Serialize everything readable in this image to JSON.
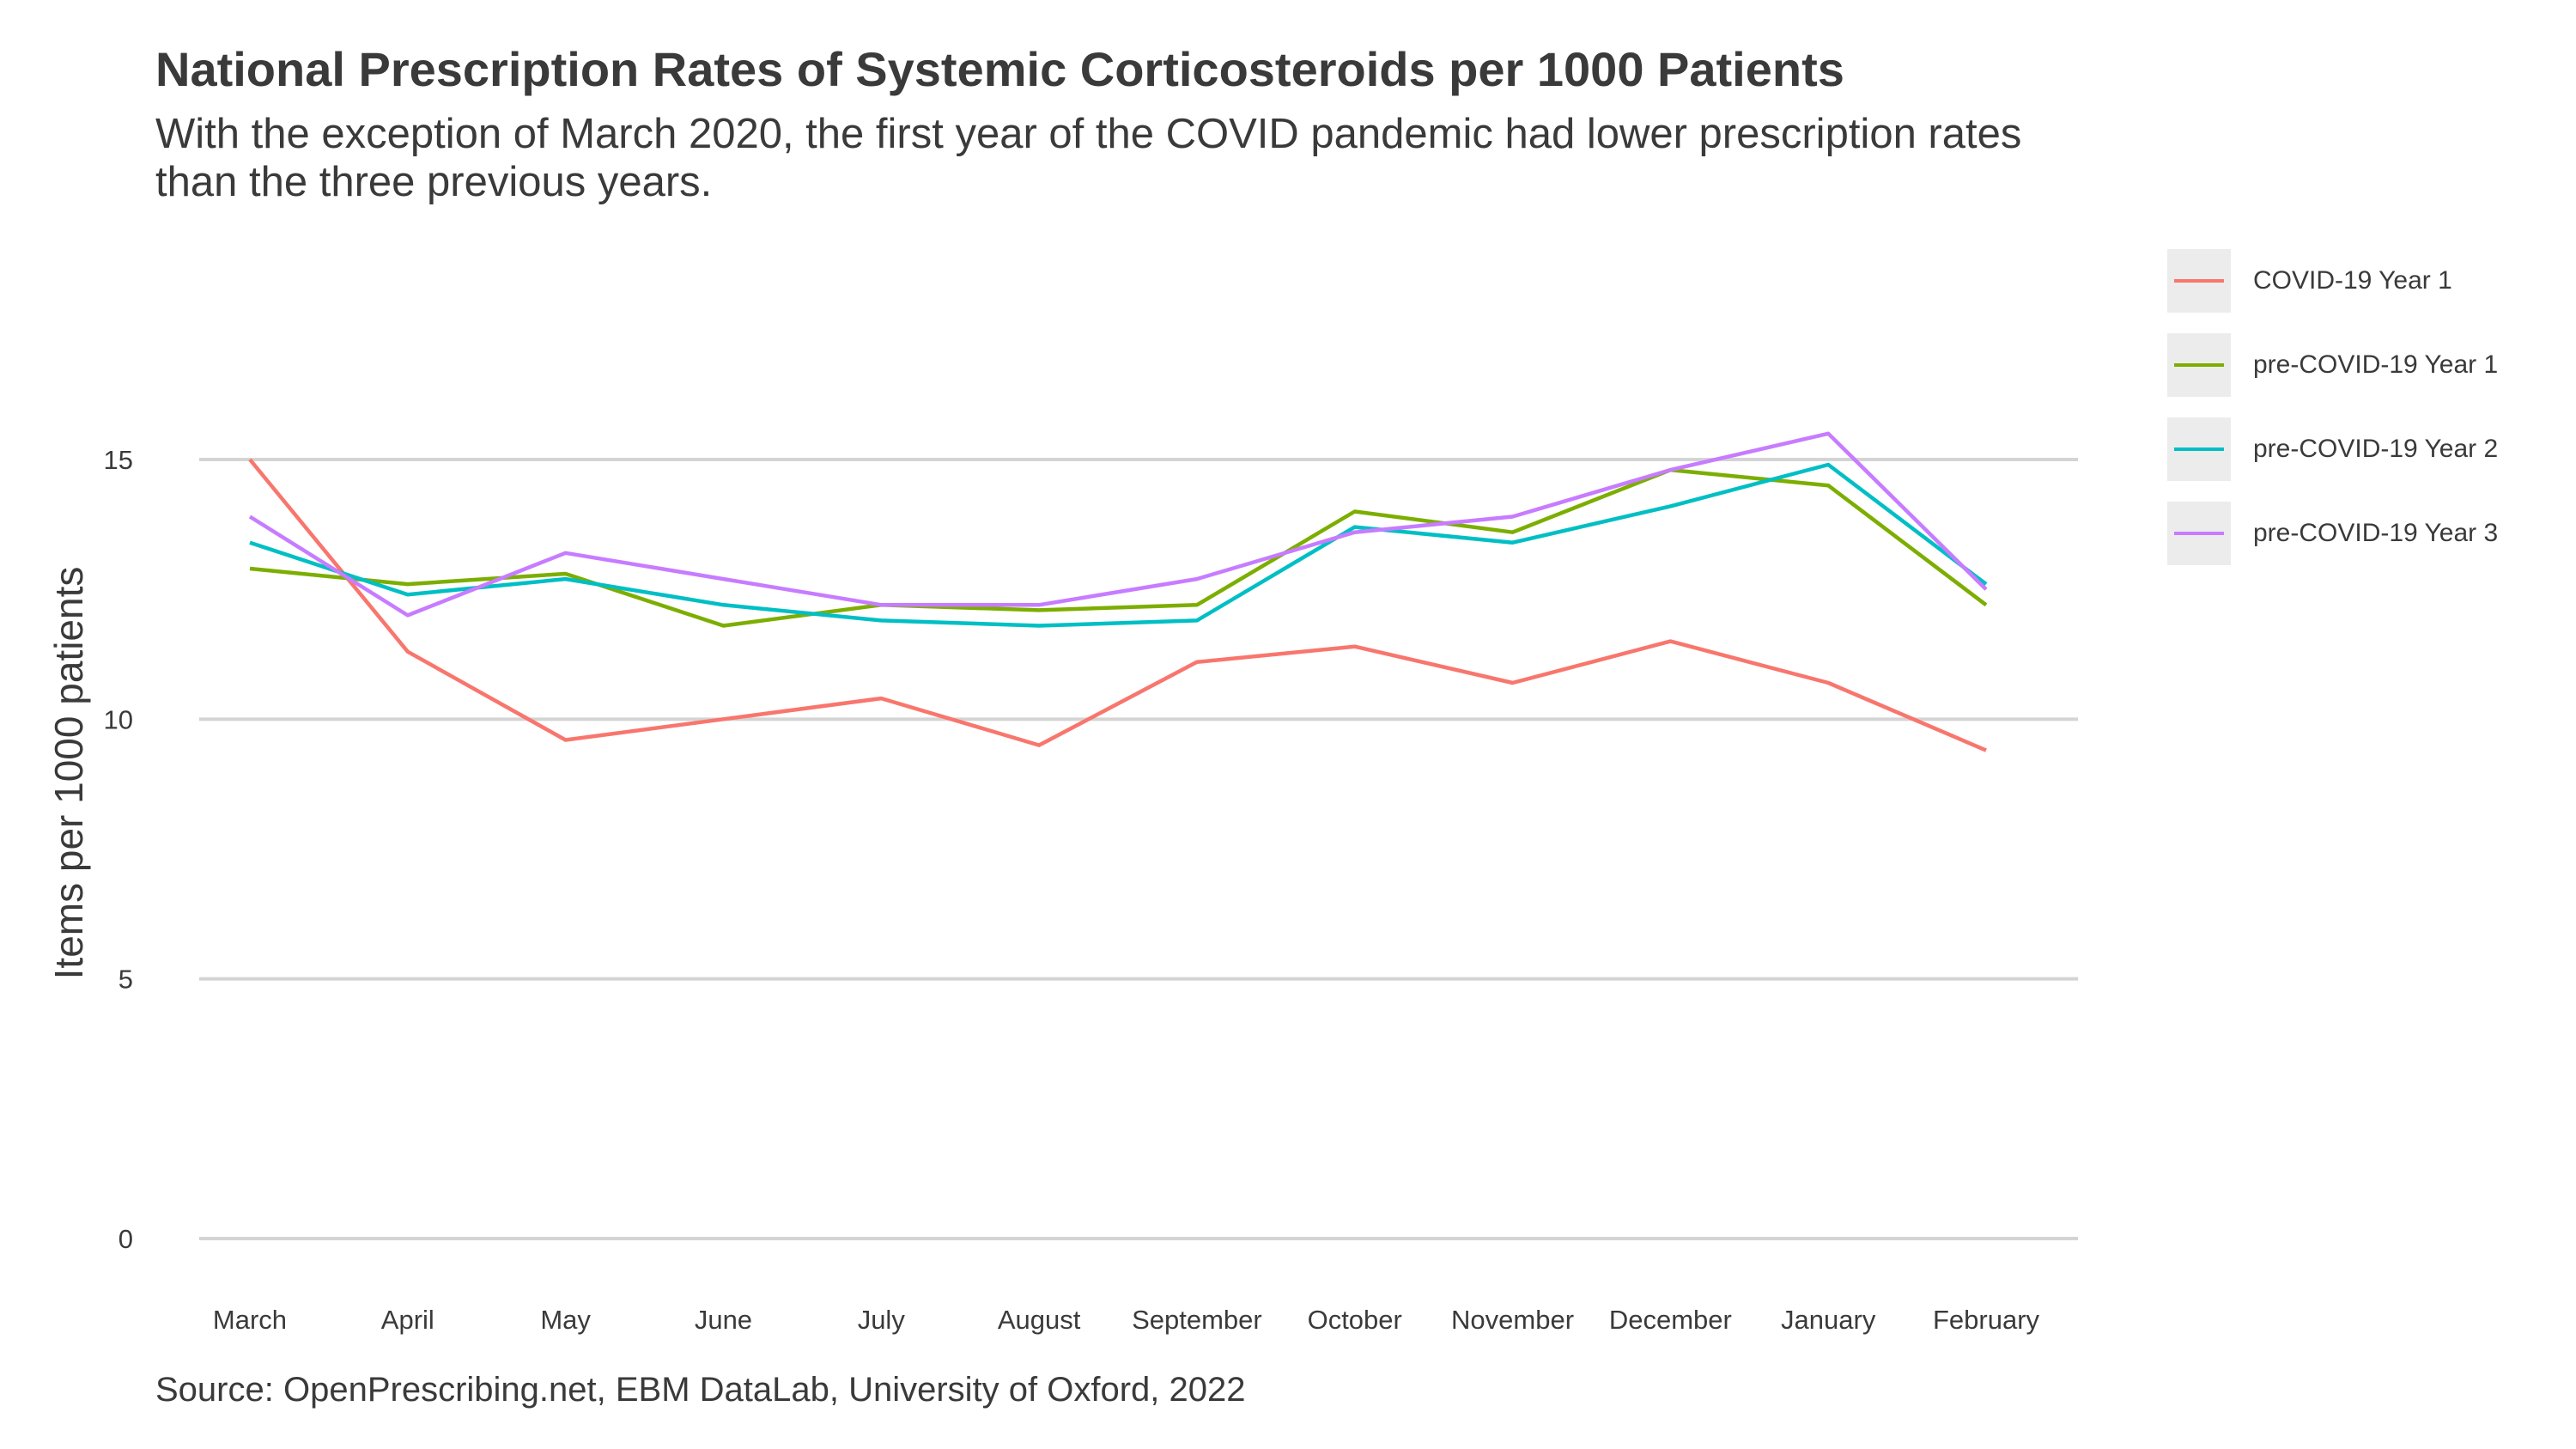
{
  "chart_data": {
    "type": "line",
    "title": "National Prescription Rates of Systemic Corticosteroids per 1000 Patients",
    "subtitle": "With the exception of March 2020, the first year of the COVID pandemic had lower prescription rates than the three previous years.",
    "caption": "Source: OpenPrescribing.net, EBM DataLab, University of Oxford, 2022",
    "xlabel": "",
    "ylabel": "Items per 1000 patients",
    "ylim": [
      0,
      19
    ],
    "yticks": [
      0,
      5,
      10,
      15
    ],
    "ytick_labels": [
      "0",
      "5",
      "10",
      "15"
    ],
    "grid": "horizontal major lines",
    "legend_position": "right",
    "categories": [
      "March",
      "April",
      "May",
      "June",
      "July",
      "August",
      "September",
      "October",
      "November",
      "December",
      "January",
      "February"
    ],
    "series": [
      {
        "name": "COVID-19 Year 1",
        "color": "#F8766D",
        "values": [
          15.0,
          11.3,
          9.6,
          10.0,
          10.4,
          9.5,
          11.1,
          11.4,
          10.7,
          11.5,
          10.7,
          9.4
        ]
      },
      {
        "name": "pre-COVID-19 Year 1",
        "color": "#7CAE00",
        "values": [
          12.9,
          12.6,
          12.8,
          11.8,
          12.2,
          12.1,
          12.2,
          14.0,
          13.6,
          14.8,
          14.5,
          12.2
        ]
      },
      {
        "name": "pre-COVID-19 Year 2",
        "color": "#00BFC4",
        "values": [
          13.4,
          12.4,
          12.7,
          12.2,
          11.9,
          11.8,
          11.9,
          13.7,
          13.4,
          14.1,
          14.9,
          12.6
        ]
      },
      {
        "name": "pre-COVID-19 Year 3",
        "color": "#C77CFF",
        "values": [
          13.9,
          12.0,
          13.2,
          12.7,
          12.2,
          12.2,
          12.7,
          13.6,
          13.9,
          14.8,
          15.5,
          12.5
        ]
      }
    ]
  }
}
